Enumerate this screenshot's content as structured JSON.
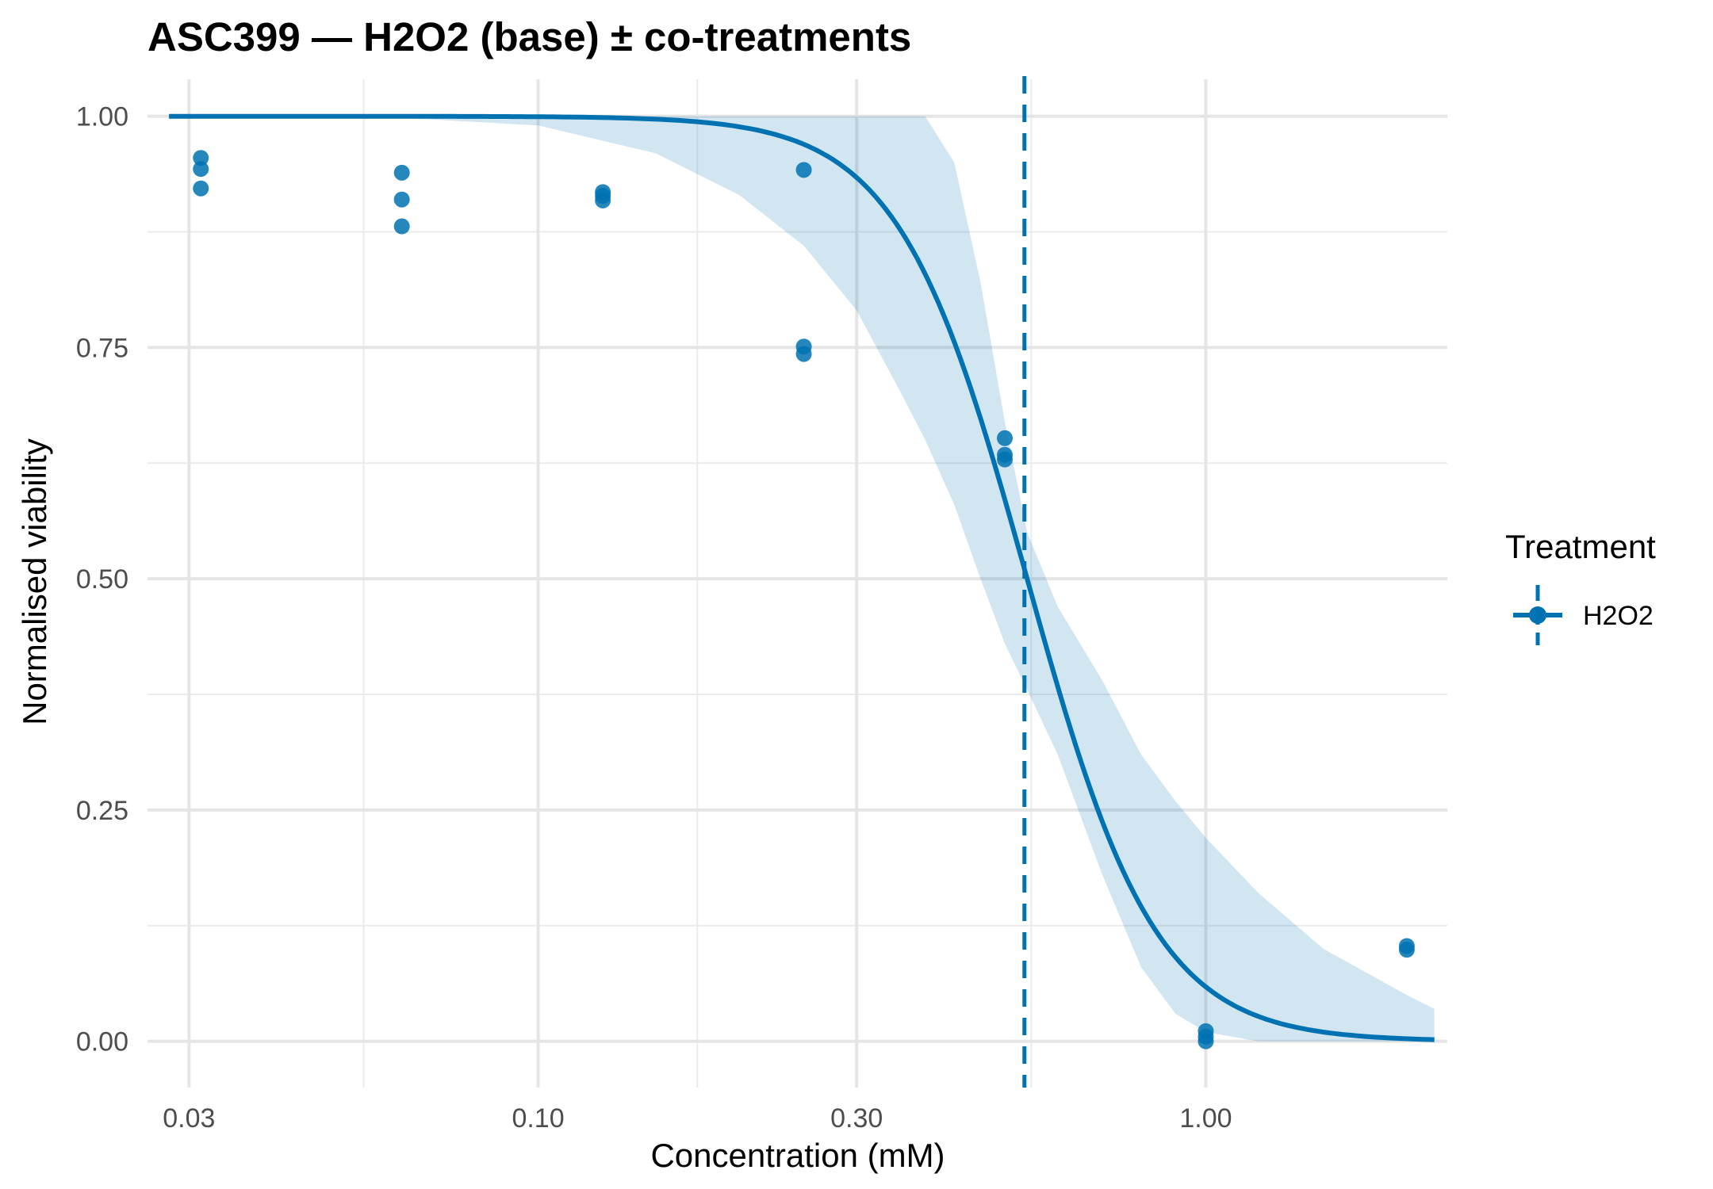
{
  "chart_data": {
    "type": "scatter",
    "title": "ASC399 — H2O2 (base) ± co-treatments",
    "xlabel": "Concentration (mM)",
    "ylabel": "Normalised viability",
    "x_scale": "log10",
    "xlim": [
      0.026,
      2.3
    ],
    "ylim": [
      -0.05,
      1.04
    ],
    "x_ticks": [
      0.03,
      0.1,
      0.3,
      1.0
    ],
    "x_tick_labels": [
      "0.03",
      "0.10",
      "0.30",
      "1.00"
    ],
    "x_minor_ticks": [
      0.0548,
      0.1732,
      0.5477
    ],
    "y_ticks": [
      0,
      0.25,
      0.5,
      0.75,
      1.0
    ],
    "y_tick_labels": [
      "0.00",
      "0.25",
      "0.50",
      "0.75",
      "1.00"
    ],
    "y_minor_ticks": [
      0.125,
      0.375,
      0.625,
      0.875
    ],
    "grid": true,
    "legend": {
      "title": "Treatment",
      "position": "right",
      "entries": [
        {
          "label": "H2O2",
          "color": "#0072B2"
        }
      ]
    },
    "series": [
      {
        "name": "H2O2",
        "color": "#0072B2",
        "points": [
          {
            "x": 0.03125,
            "y": 0.955
          },
          {
            "x": 0.03125,
            "y": 0.943
          },
          {
            "x": 0.03125,
            "y": 0.922
          },
          {
            "x": 0.0625,
            "y": 0.939
          },
          {
            "x": 0.0625,
            "y": 0.91
          },
          {
            "x": 0.0625,
            "y": 0.881
          },
          {
            "x": 0.125,
            "y": 0.918
          },
          {
            "x": 0.125,
            "y": 0.914
          },
          {
            "x": 0.125,
            "y": 0.909
          },
          {
            "x": 0.25,
            "y": 0.942
          },
          {
            "x": 0.25,
            "y": 0.751
          },
          {
            "x": 0.25,
            "y": 0.743
          },
          {
            "x": 0.5,
            "y": 0.652
          },
          {
            "x": 0.5,
            "y": 0.634
          },
          {
            "x": 0.5,
            "y": 0.629
          },
          {
            "x": 1.0,
            "y": 0.011
          },
          {
            "x": 1.0,
            "y": 0.005
          },
          {
            "x": 1.0,
            "y": 0.0
          },
          {
            "x": 2.0,
            "y": 0.103
          },
          {
            "x": 2.0,
            "y": 0.099
          }
        ]
      }
    ],
    "fit": {
      "model": "four-parameter log-logistic",
      "color": "#0072B2",
      "x_range": [
        0.028,
        2.2
      ],
      "top": 1.0,
      "bottom": 0.0,
      "ec50": 0.54,
      "hill": 4.5
    },
    "confidence_band": {
      "color": "#0072B2",
      "opacity": 0.18,
      "x": [
        0.028,
        0.04,
        0.06,
        0.1,
        0.15,
        0.2,
        0.25,
        0.3,
        0.35,
        0.38,
        0.42,
        0.46,
        0.5,
        0.54,
        0.6,
        0.7,
        0.8,
        0.9,
        1.0,
        1.2,
        1.5,
        2.0,
        2.2
      ],
      "upper": [
        1.0,
        1.0,
        1.0,
        1.0,
        1.0,
        1.0,
        1.0,
        1.0,
        1.0,
        1.0,
        0.95,
        0.82,
        0.67,
        0.55,
        0.47,
        0.39,
        0.31,
        0.26,
        0.22,
        0.16,
        0.1,
        0.05,
        0.035
      ],
      "lower": [
        1.0,
        1.0,
        0.999,
        0.99,
        0.96,
        0.915,
        0.86,
        0.79,
        0.7,
        0.65,
        0.58,
        0.5,
        0.43,
        0.38,
        0.31,
        0.18,
        0.08,
        0.03,
        0.01,
        0.0,
        0.0,
        0.0,
        0.0
      ]
    },
    "reference_line": {
      "x": 0.535,
      "style": "dashed",
      "color": "#0072B2"
    }
  }
}
